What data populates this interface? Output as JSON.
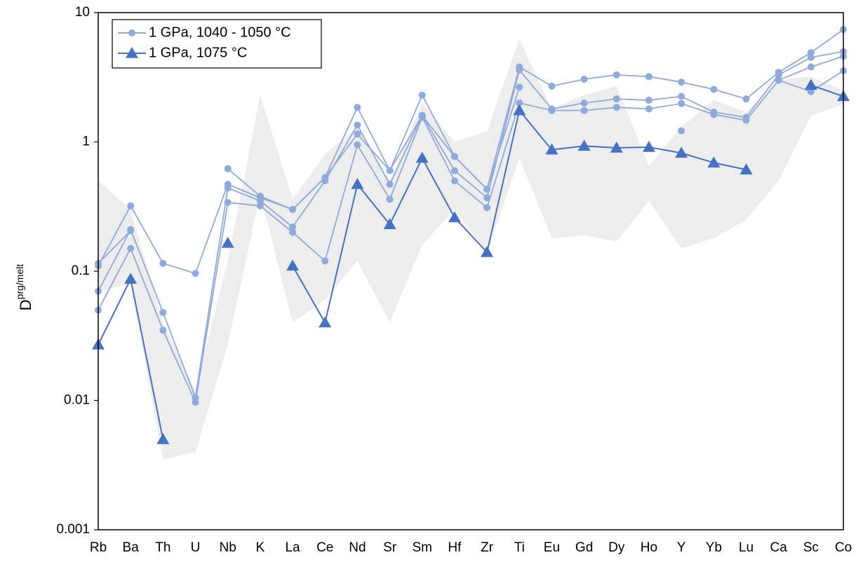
{
  "chart_data": {
    "type": "line",
    "y_label": "D",
    "y_label_sup": "prg/melt",
    "log_y": true,
    "ylim": [
      0.001,
      10
    ],
    "yticks": [
      0.001,
      0.01,
      0.1,
      1,
      10
    ],
    "legend": "top-left",
    "categories": [
      "Rb",
      "Ba",
      "Th",
      "U",
      "Nb",
      "K",
      "La",
      "Ce",
      "Nd",
      "Sr",
      "Sm",
      "Hf",
      "Zr",
      "Ti",
      "Eu",
      "Gd",
      "Dy",
      "Ho",
      "Y",
      "Yb",
      "Lu",
      "Ca",
      "Sc",
      "Co"
    ],
    "band": {
      "color": "#ededed",
      "high": [
        0.5,
        0.3,
        0.04,
        0.012,
        0.12,
        2.3,
        0.36,
        0.8,
        1.3,
        0.5,
        2.0,
        1.0,
        1.2,
        6.3,
        1.8,
        2.3,
        2.7,
        0.65,
        1.3,
        2.1,
        1.7,
        3.0,
        3.2,
        2.5
      ],
      "low": [
        0.07,
        0.08,
        0.0035,
        0.004,
        0.027,
        0.4,
        0.04,
        0.06,
        0.12,
        0.04,
        0.16,
        0.3,
        0.14,
        0.75,
        0.18,
        0.19,
        0.17,
        0.35,
        0.15,
        0.18,
        0.25,
        0.5,
        1.6,
        1.95
      ]
    },
    "series": [
      {
        "name": "1 GPa, 1040 - 1050 °C",
        "color": "#8faadc",
        "marker": "circle",
        "runs": [
          [
            0.11,
            0.32,
            0.115,
            0.096,
            0.47,
            0.37,
            0.3,
            0.53,
            1.85,
            0.6,
            2.3,
            0.77,
            0.43,
            3.8,
            2.7,
            3.05,
            3.3,
            3.2,
            2.9,
            2.55,
            2.15,
            3.45,
            4.9,
            7.4
          ],
          [
            0.07,
            0.21,
            0.048,
            0.0105,
            0.44,
            0.35,
            0.22,
            0.5,
            1.35,
            0.47,
            1.6,
            0.6,
            0.37,
            3.6,
            1.8,
            2.0,
            2.15,
            2.1,
            2.25,
            1.7,
            1.55,
            3.3,
            4.5,
            5.0
          ],
          [
            0.05,
            0.15,
            0.035,
            0.0097,
            0.34,
            0.32,
            0.2,
            0.12,
            0.95,
            0.36,
            1.55,
            0.5,
            0.31,
            2.0,
            1.75,
            1.75,
            1.85,
            1.8,
            1.98,
            1.63,
            1.47,
            3.0,
            3.8,
            4.6
          ],
          [
            0.115,
            0.205,
            null,
            null,
            0.62,
            0.38,
            0.3,
            0.53,
            1.15,
            0.6,
            1.6,
            0.77,
            0.43,
            2.65,
            null,
            null,
            null,
            null,
            1.22,
            null,
            null,
            3.0,
            2.45,
            3.55
          ]
        ]
      },
      {
        "name": "1 GPa, 1075 °C",
        "color": "#4472c4",
        "marker": "triangle",
        "runs": [
          [
            0.027,
            0.087,
            0.005,
            null,
            0.165,
            null,
            0.11,
            0.04,
            0.47,
            0.23,
            0.75,
            0.26,
            0.14,
            1.75,
            0.87,
            0.93,
            0.9,
            0.91,
            0.82,
            0.69,
            0.61,
            null,
            2.75,
            2.25
          ]
        ]
      }
    ]
  }
}
